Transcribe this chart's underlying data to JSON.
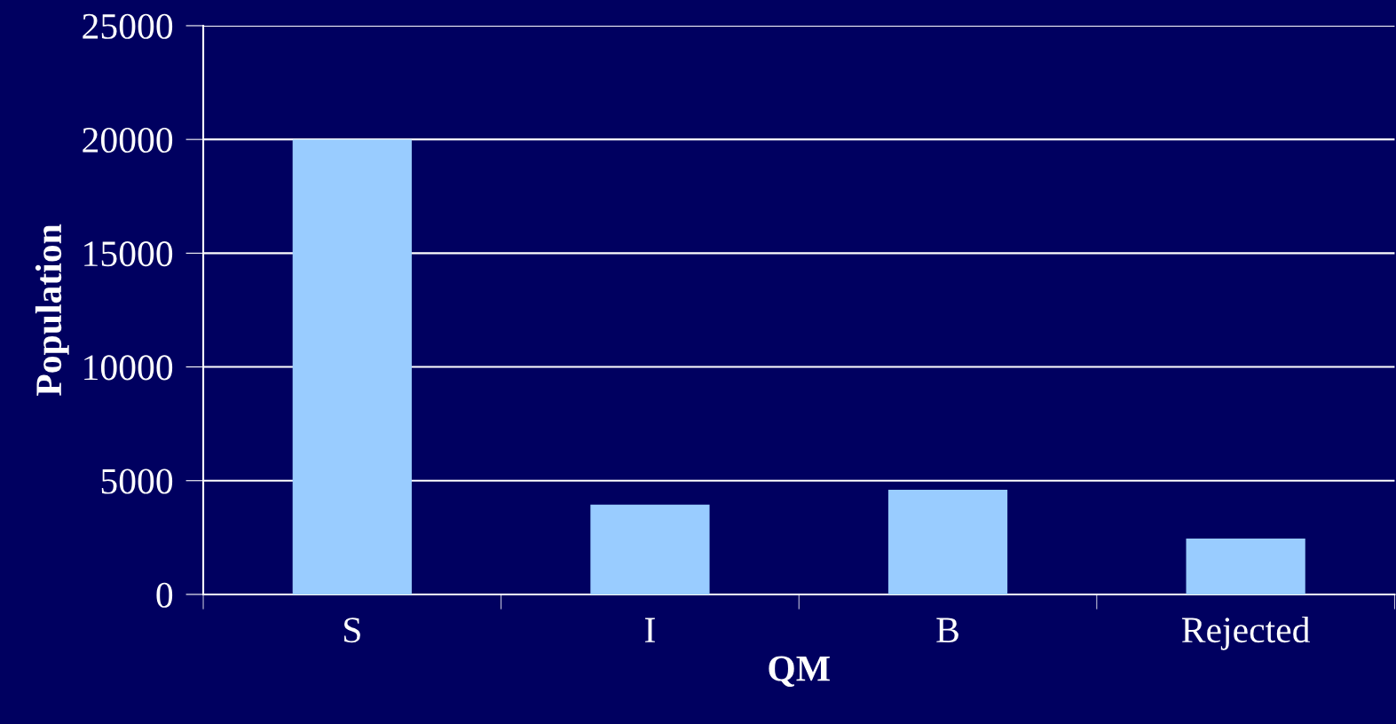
{
  "chart_data": {
    "type": "bar",
    "xlabel": "QM",
    "ylabel": "Population",
    "categories": [
      "S",
      "I",
      "B",
      "Rejected"
    ],
    "values": [
      20000,
      3950,
      4600,
      2450
    ],
    "color": "#99ccff",
    "ylim": [
      0,
      25000
    ],
    "yticks": [
      0,
      5000,
      10000,
      15000,
      20000,
      25000
    ],
    "grid": "y"
  }
}
